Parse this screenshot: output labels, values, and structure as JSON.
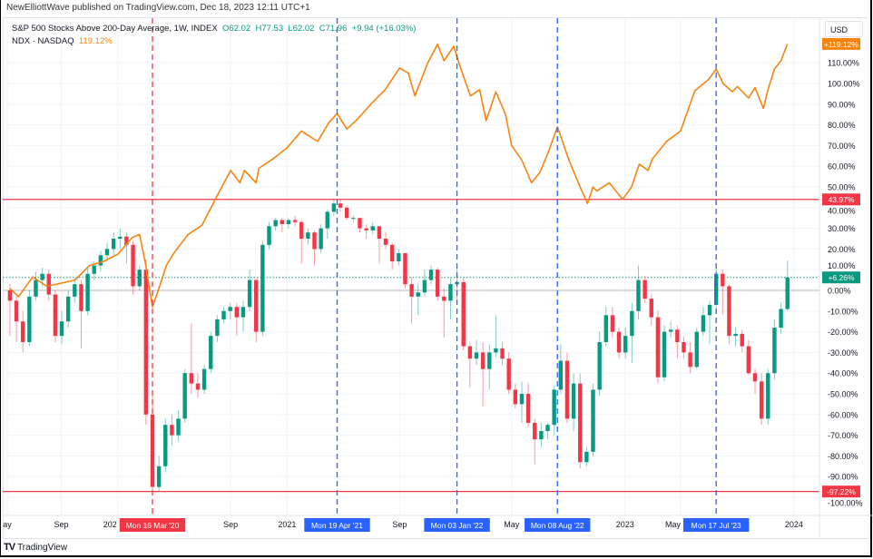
{
  "header": {
    "publisher_line": "NewElliottWave published on TradingView.com, Dec 18, 2023 12:11 UTC+1",
    "main_series": {
      "title": "S&P 500 Stocks Above 200-Day Average, 1W, INDEX",
      "open": "O62.02",
      "high": "H77.53",
      "low": "L62.02",
      "close": "C71.96",
      "change": "+9.94 (+16.03%)"
    },
    "compare_series": {
      "title": "NDX · NASDAQ",
      "value": "119.12%"
    },
    "currency_button": "USD"
  },
  "footer": {
    "brand": "TradingView"
  },
  "colors": {
    "up": "#089981",
    "down": "#f23645",
    "ndx": "#f68410",
    "marker_blue": "#2962ff",
    "marker_red": "#f23645"
  },
  "chart_data": {
    "type": "candlestick+line",
    "scale": "percent",
    "grid": true,
    "y_ticks": [
      "110.00%",
      "100.00%",
      "90.00%",
      "80.00%",
      "70.00%",
      "60.00%",
      "50.00%",
      "40.00%",
      "30.00%",
      "20.00%",
      "10.00%",
      "0.00%",
      "-10.00%",
      "-20.00%",
      "-30.00%",
      "-40.00%",
      "-50.00%",
      "-60.00%",
      "-70.00%",
      "-80.00%",
      "-90.00%",
      "-100.00%"
    ],
    "y_tick_values": [
      110,
      100,
      90,
      80,
      70,
      60,
      50,
      40,
      30,
      20,
      10,
      0,
      -10,
      -20,
      -30,
      -40,
      -50,
      -60,
      -70,
      -80,
      -90,
      -100
    ],
    "ylim": [
      -105,
      125
    ],
    "x_ticks": [
      {
        "label": "ay",
        "date": "2019-05-01"
      },
      {
        "label": "Sep",
        "date": "2019-09-01"
      },
      {
        "label": "202",
        "date": "2020-01-01"
      },
      {
        "label": "Sep",
        "date": "2020-09-01"
      },
      {
        "label": "2021",
        "date": "2021-01-01"
      },
      {
        "label": "Sep",
        "date": "2021-09-01"
      },
      {
        "label": "May",
        "date": "2022-05-01"
      },
      {
        "label": "2023",
        "date": "2023-01-01"
      },
      {
        "label": "May",
        "date": "2023-05-01"
      },
      {
        "label": "2024",
        "date": "2024-01-01"
      }
    ],
    "price_labels": [
      {
        "text": "+119.12%",
        "value": 119.12,
        "color": "#f68410"
      },
      {
        "text": "43.97%",
        "value": 43.97,
        "color": "#f23645"
      },
      {
        "text": "+6.26%",
        "value": 6.26,
        "color": "#089981"
      },
      {
        "text": "-97.22%",
        "value": -97.22,
        "color": "#f23645"
      }
    ],
    "horizontal_lines": [
      {
        "value": 43.97,
        "color": "#f23645",
        "style": "solid"
      },
      {
        "value": -97.22,
        "color": "#f23645",
        "style": "solid"
      },
      {
        "value": 6.26,
        "color": "#089981",
        "style": "dotted"
      },
      {
        "value": 0,
        "color": "#b2b5be",
        "style": "solid"
      }
    ],
    "vertical_markers": [
      {
        "label": "Mon 16 Mar '20",
        "date": "2020-03-16",
        "color": "#f23645"
      },
      {
        "label": "Mon 19 Apr '21",
        "date": "2021-04-19",
        "color": "#2962ff"
      },
      {
        "label": "Mon 03 Jan '22",
        "date": "2022-01-03",
        "color": "#2962ff"
      },
      {
        "label": "Mon 08 Aug '22",
        "date": "2022-08-08",
        "color": "#2962ff"
      },
      {
        "label": "Mon 17 Jul '23",
        "date": "2023-07-17",
        "color": "#2962ff"
      }
    ],
    "candles": {
      "first_date": "2019-05-13",
      "step_days": 14,
      "ohlc": [
        [
          0,
          3,
          -22,
          -5
        ],
        [
          -5,
          -2,
          -25,
          -15
        ],
        [
          -15,
          -10,
          -30,
          -25
        ],
        [
          -25,
          0,
          -27,
          -3
        ],
        [
          -3,
          9,
          -5,
          5
        ],
        [
          5,
          11,
          2,
          8
        ],
        [
          8,
          10,
          -5,
          -2
        ],
        [
          -2,
          0,
          -25,
          -22
        ],
        [
          -22,
          -10,
          -26,
          -15
        ],
        [
          -15,
          0,
          -18,
          -3
        ],
        [
          -3,
          6,
          -6,
          3
        ],
        [
          3,
          5,
          -28,
          -10
        ],
        [
          -10,
          11,
          -12,
          8
        ],
        [
          8,
          14,
          5,
          12
        ],
        [
          12,
          19,
          9,
          17
        ],
        [
          17,
          23,
          14,
          20
        ],
        [
          20,
          28,
          17,
          25
        ],
        [
          25,
          30,
          20,
          26
        ],
        [
          26,
          28,
          13,
          22
        ],
        [
          22,
          24,
          -2,
          2
        ],
        [
          2,
          12,
          0,
          10
        ],
        [
          10,
          15,
          -65,
          -60
        ],
        [
          -60,
          -50,
          -97.22,
          -95
        ],
        [
          -95,
          -80,
          -97,
          -85
        ],
        [
          -85,
          -62,
          -88,
          -65
        ],
        [
          -65,
          -60,
          -75,
          -70
        ],
        [
          -70,
          -58,
          -73,
          -62
        ],
        [
          -62,
          -38,
          -64,
          -40
        ],
        [
          -40,
          -16,
          -50,
          -45
        ],
        [
          -45,
          -40,
          -52,
          -48
        ],
        [
          -48,
          -36,
          -50,
          -38
        ],
        [
          -38,
          -20,
          -40,
          -22
        ],
        [
          -22,
          -12,
          -25,
          -14
        ],
        [
          -14,
          -8,
          -16,
          -10
        ],
        [
          -10,
          -6,
          -14,
          -8
        ],
        [
          -8,
          -6,
          -22,
          -13
        ],
        [
          -13,
          -5,
          -20,
          -8
        ],
        [
          -8,
          10,
          -10,
          5
        ],
        [
          5,
          6,
          -25,
          -20
        ],
        [
          -20,
          24,
          -22,
          22
        ],
        [
          22,
          33,
          20,
          31
        ],
        [
          31,
          35,
          29,
          34
        ],
        [
          34,
          35,
          28,
          32
        ],
        [
          32,
          35,
          30,
          34
        ],
        [
          34,
          36,
          31,
          33
        ],
        [
          33,
          34,
          13,
          25
        ],
        [
          25,
          30,
          22,
          28
        ],
        [
          28,
          29,
          12,
          20
        ],
        [
          20,
          32,
          18,
          30
        ],
        [
          30,
          39,
          25,
          38
        ],
        [
          38,
          44,
          36,
          42
        ],
        [
          42,
          43.97,
          38,
          40
        ],
        [
          40,
          41,
          34,
          35
        ],
        [
          35,
          36,
          33,
          35
        ],
        [
          35,
          35,
          28,
          30
        ],
        [
          30,
          32,
          25,
          29
        ],
        [
          29,
          33,
          27,
          31
        ],
        [
          31,
          31,
          13,
          25
        ],
        [
          25,
          28,
          20,
          22
        ],
        [
          22,
          23,
          10,
          14
        ],
        [
          14,
          20,
          12,
          18
        ],
        [
          18,
          18,
          1,
          3
        ],
        [
          3,
          6,
          -16,
          -3
        ],
        [
          -3,
          3,
          -12,
          -1
        ],
        [
          -1,
          10,
          -3,
          5
        ],
        [
          5,
          12,
          3,
          10
        ],
        [
          10,
          11,
          -5,
          -3
        ],
        [
          -3,
          1,
          -23,
          -5
        ],
        [
          -5,
          6,
          -14,
          3
        ],
        [
          3,
          11,
          -4,
          4
        ],
        [
          4,
          6,
          -29,
          -27
        ],
        [
          -27,
          -25,
          -47,
          -33
        ],
        [
          -33,
          -24,
          -36,
          -30
        ],
        [
          -30,
          -25,
          -56,
          -38
        ],
        [
          -38,
          -26,
          -48,
          -30
        ],
        [
          -30,
          -12,
          -32,
          -28
        ],
        [
          -28,
          -25,
          -36,
          -33
        ],
        [
          -33,
          -30,
          -50,
          -48
        ],
        [
          -48,
          -45,
          -57,
          -55
        ],
        [
          -55,
          -44,
          -64,
          -50
        ],
        [
          -50,
          -45,
          -66,
          -64
        ],
        [
          -64,
          -62,
          -84,
          -72
        ],
        [
          -72,
          -64,
          -76,
          -68
        ],
        [
          -68,
          -64,
          -72,
          -65
        ],
        [
          -65,
          -46,
          -70,
          -48
        ],
        [
          -48,
          -26,
          -50,
          -34
        ],
        [
          -34,
          -30,
          -64,
          -62
        ],
        [
          -62,
          -40,
          -68,
          -45
        ],
        [
          -45,
          -40,
          -86,
          -83
        ],
        [
          -83,
          -76,
          -85,
          -78
        ],
        [
          -78,
          -45,
          -80,
          -48
        ],
        [
          -48,
          -20,
          -51,
          -25
        ],
        [
          -25,
          -8,
          -27,
          -12
        ],
        [
          -12,
          -8,
          -23,
          -20
        ],
        [
          -20,
          -18,
          -33,
          -30
        ],
        [
          -30,
          -18,
          -33,
          -22
        ],
        [
          -22,
          -6,
          -35,
          -10
        ],
        [
          -10,
          12,
          -14,
          5
        ],
        [
          5,
          7,
          -6,
          -4
        ],
        [
          -4,
          -2,
          -17,
          -13
        ],
        [
          -13,
          -10,
          -45,
          -42
        ],
        [
          -42,
          -17,
          -44,
          -20
        ],
        [
          -20,
          -15,
          -23,
          -19
        ],
        [
          -19,
          -17,
          -33,
          -25
        ],
        [
          -25,
          -22,
          -33,
          -30
        ],
        [
          -30,
          -25,
          -40,
          -37
        ],
        [
          -37,
          -18,
          -38,
          -20
        ],
        [
          -20,
          -8,
          -22,
          -12
        ],
        [
          -12,
          -5,
          -26,
          -7
        ],
        [
          -7,
          11,
          -9,
          8
        ],
        [
          8,
          10,
          -12,
          2
        ],
        [
          2,
          3,
          -26,
          -22
        ],
        [
          -22,
          -18,
          -27,
          -21
        ],
        [
          -21,
          -19,
          -30,
          -27
        ],
        [
          -27,
          -24,
          -41,
          -40
        ],
        [
          -40,
          -38,
          -50,
          -44
        ],
        [
          -44,
          -40,
          -65,
          -62
        ],
        [
          -62,
          -38,
          -65,
          -40
        ],
        [
          -40,
          -14,
          -43,
          -18
        ],
        [
          -18,
          -6,
          -21,
          -9
        ],
        [
          -9,
          14.5,
          -10,
          6.26
        ]
      ]
    },
    "ndx_line": [
      {
        "date": "2019-05-13",
        "value": 0.9
      },
      {
        "date": "2019-06-01",
        "value": -3
      },
      {
        "date": "2019-07-01",
        "value": 6.5
      },
      {
        "date": "2019-08-01",
        "value": 2
      },
      {
        "date": "2019-09-01",
        "value": 3.5
      },
      {
        "date": "2019-10-01",
        "value": 5
      },
      {
        "date": "2019-11-01",
        "value": 12
      },
      {
        "date": "2019-12-01",
        "value": 14
      },
      {
        "date": "2020-01-01",
        "value": 17.5
      },
      {
        "date": "2020-02-01",
        "value": 25.5
      },
      {
        "date": "2020-02-17",
        "value": 27
      },
      {
        "date": "2020-03-01",
        "value": 13
      },
      {
        "date": "2020-03-16",
        "value": -8
      },
      {
        "date": "2020-03-30",
        "value": 1
      },
      {
        "date": "2020-04-15",
        "value": 12
      },
      {
        "date": "2020-05-01",
        "value": 18
      },
      {
        "date": "2020-06-01",
        "value": 27
      },
      {
        "date": "2020-07-01",
        "value": 31.5
      },
      {
        "date": "2020-08-01",
        "value": 45
      },
      {
        "date": "2020-09-01",
        "value": 58
      },
      {
        "date": "2020-09-21",
        "value": 52
      },
      {
        "date": "2020-10-01",
        "value": 58
      },
      {
        "date": "2020-10-26",
        "value": 52
      },
      {
        "date": "2020-11-01",
        "value": 59
      },
      {
        "date": "2020-12-01",
        "value": 63.5
      },
      {
        "date": "2021-01-01",
        "value": 69
      },
      {
        "date": "2021-02-01",
        "value": 77
      },
      {
        "date": "2021-03-08",
        "value": 72
      },
      {
        "date": "2021-04-01",
        "value": 81
      },
      {
        "date": "2021-04-19",
        "value": 85.5
      },
      {
        "date": "2021-05-10",
        "value": 78
      },
      {
        "date": "2021-06-01",
        "value": 82.5
      },
      {
        "date": "2021-07-01",
        "value": 90
      },
      {
        "date": "2021-08-01",
        "value": 97
      },
      {
        "date": "2021-09-01",
        "value": 107.5
      },
      {
        "date": "2021-09-20",
        "value": 105
      },
      {
        "date": "2021-10-04",
        "value": 94
      },
      {
        "date": "2021-11-01",
        "value": 110
      },
      {
        "date": "2021-11-22",
        "value": 119
      },
      {
        "date": "2021-12-06",
        "value": 111
      },
      {
        "date": "2021-12-27",
        "value": 118
      },
      {
        "date": "2022-01-10",
        "value": 108
      },
      {
        "date": "2022-02-01",
        "value": 94
      },
      {
        "date": "2022-02-21",
        "value": 97
      },
      {
        "date": "2022-03-07",
        "value": 82
      },
      {
        "date": "2022-03-28",
        "value": 96
      },
      {
        "date": "2022-04-18",
        "value": 85
      },
      {
        "date": "2022-05-01",
        "value": 70
      },
      {
        "date": "2022-05-23",
        "value": 63
      },
      {
        "date": "2022-06-13",
        "value": 52
      },
      {
        "date": "2022-07-01",
        "value": 57
      },
      {
        "date": "2022-07-18",
        "value": 66
      },
      {
        "date": "2022-08-08",
        "value": 79
      },
      {
        "date": "2022-09-01",
        "value": 63.5
      },
      {
        "date": "2022-09-26",
        "value": 50
      },
      {
        "date": "2022-10-12",
        "value": 42
      },
      {
        "date": "2022-10-24",
        "value": 50
      },
      {
        "date": "2022-11-01",
        "value": 48
      },
      {
        "date": "2022-11-28",
        "value": 52
      },
      {
        "date": "2022-12-27",
        "value": 44
      },
      {
        "date": "2023-01-15",
        "value": 50
      },
      {
        "date": "2023-02-01",
        "value": 61
      },
      {
        "date": "2023-02-20",
        "value": 58
      },
      {
        "date": "2023-03-01",
        "value": 63.5
      },
      {
        "date": "2023-04-01",
        "value": 72
      },
      {
        "date": "2023-05-01",
        "value": 77
      },
      {
        "date": "2023-06-01",
        "value": 96.5
      },
      {
        "date": "2023-07-01",
        "value": 102
      },
      {
        "date": "2023-07-17",
        "value": 107
      },
      {
        "date": "2023-08-01",
        "value": 100
      },
      {
        "date": "2023-08-21",
        "value": 96
      },
      {
        "date": "2023-09-01",
        "value": 98.5
      },
      {
        "date": "2023-09-25",
        "value": 93
      },
      {
        "date": "2023-10-09",
        "value": 98
      },
      {
        "date": "2023-10-27",
        "value": 88
      },
      {
        "date": "2023-11-06",
        "value": 97
      },
      {
        "date": "2023-11-20",
        "value": 107
      },
      {
        "date": "2023-12-04",
        "value": 111
      },
      {
        "date": "2023-12-18",
        "value": 119.12
      }
    ]
  }
}
